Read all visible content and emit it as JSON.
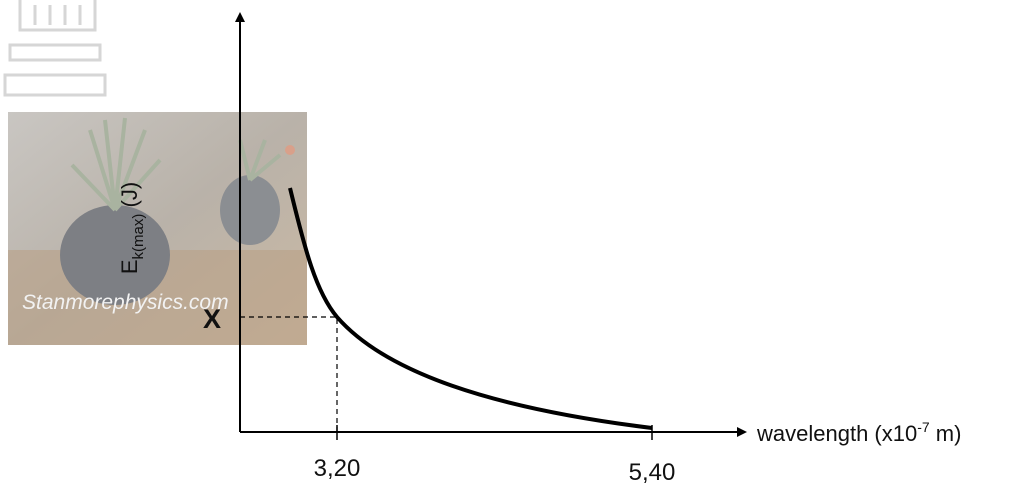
{
  "axes": {
    "y_label": {
      "main": "E",
      "subscript": "k(max)",
      "unit": " (J)"
    },
    "x_label": {
      "main": "wavelength (x10",
      "superscript": "-7",
      "unit": " m)"
    }
  },
  "ticks": {
    "x": [
      "3,20",
      "5,40"
    ],
    "y": "X"
  },
  "watermark": "Stanmorephysics.com"
}
